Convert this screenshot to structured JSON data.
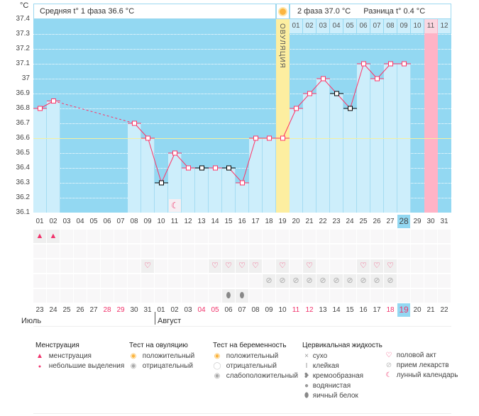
{
  "header": {
    "unit": "°C",
    "phase1": "Средняя t° 1 фаза 36.6 °C",
    "phase2": "2 фаза 37.0 °C",
    "diff": "Разница t° 0.4 °C",
    "ovulation_label": "ОВУЛЯЦИЯ"
  },
  "colors": {
    "chart_bg": "#93d8f2",
    "bar": "#cdeefb",
    "line": "#ff3366",
    "ovulation": "#fdeea0",
    "expected_period": "#ffb3c6",
    "highlight": "#93d8f2"
  },
  "chart_data": {
    "type": "line",
    "ylim": [
      36.1,
      37.4
    ],
    "yticks": [
      "37.4",
      "37.3",
      "37.2",
      "37.1",
      "37",
      "36.9",
      "36.8",
      "36.7",
      "36.6",
      "36.5",
      "36.4",
      "36.3",
      "36.2",
      "36.1"
    ],
    "coverline": 36.6,
    "ovulation_day": 19,
    "expected_period_day": 30,
    "cycle_days": [
      "01",
      "02",
      "03",
      "04",
      "05",
      "06",
      "07",
      "08",
      "09",
      "10",
      "11",
      "12",
      "13",
      "14",
      "15",
      "16",
      "17",
      "18",
      "19",
      "20",
      "21",
      "22",
      "23",
      "24",
      "25",
      "26",
      "27",
      "28",
      "29",
      "30",
      "31"
    ],
    "current_day": "28",
    "temps": [
      36.8,
      36.85,
      null,
      null,
      null,
      null,
      null,
      36.7,
      36.6,
      36.3,
      36.5,
      36.4,
      36.4,
      36.4,
      36.4,
      36.3,
      36.6,
      36.6,
      36.6,
      36.8,
      36.9,
      37.0,
      36.9,
      36.8,
      37.1,
      37.0,
      37.1,
      37.1,
      null,
      null,
      null
    ],
    "black_markers": [
      10,
      13,
      15,
      23,
      24
    ],
    "phase2_days": [
      "01",
      "02",
      "03",
      "04",
      "05",
      "06",
      "07",
      "08",
      "09",
      "10",
      "11",
      "12"
    ]
  },
  "markers": {
    "menstruation": [
      1,
      2
    ],
    "intercourse": [
      9,
      14,
      15,
      16,
      17,
      19,
      21,
      25,
      26,
      27
    ],
    "medication": [
      18,
      19,
      20,
      21,
      22,
      23,
      24,
      25,
      26,
      27
    ],
    "egg_white": [
      15,
      16
    ],
    "moon": [
      11
    ]
  },
  "dates": {
    "values": [
      "23",
      "24",
      "25",
      "26",
      "27",
      "28",
      "29",
      "30",
      "31",
      "01",
      "02",
      "03",
      "04",
      "05",
      "06",
      "07",
      "08",
      "09",
      "10",
      "11",
      "12",
      "13",
      "14",
      "15",
      "16",
      "17",
      "18",
      "19",
      "20",
      "21",
      "22"
    ],
    "weekend": [
      5,
      6,
      12,
      13,
      19,
      20,
      26,
      27
    ],
    "today_index": 28,
    "month1": "Июль",
    "month2": "Август"
  },
  "legend": {
    "menstruation": {
      "title": "Менструация",
      "items": [
        "менструация",
        "небольшие выделения"
      ]
    },
    "ovulation_test": {
      "title": "Тест на овуляцию",
      "items": [
        "положительный",
        "отрицательный"
      ]
    },
    "pregnancy_test": {
      "title": "Тест на беременность",
      "items": [
        "положительный",
        "отрицательный",
        "слабоположительный"
      ]
    },
    "cervical": {
      "title": "Цервикальная жидкость",
      "items": [
        "сухо",
        "клейкая",
        "кремообразная",
        "водянистая",
        "яичный белок"
      ]
    },
    "other": {
      "items": [
        "половой акт",
        "прием лекарств",
        "лунный календарь"
      ]
    }
  }
}
